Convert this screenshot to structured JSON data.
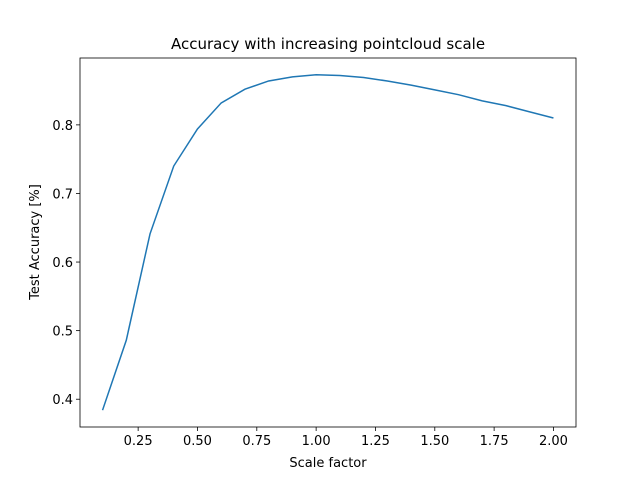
{
  "chart_data": {
    "type": "line",
    "title": "Accuracy with increasing pointcloud scale",
    "xlabel": "Scale factor",
    "ylabel": "Test Accuracy [%]",
    "x": [
      0.1,
      0.2,
      0.3,
      0.4,
      0.5,
      0.6,
      0.7,
      0.8,
      0.9,
      1.0,
      1.1,
      1.2,
      1.3,
      1.4,
      1.5,
      1.6,
      1.7,
      1.8,
      1.9,
      2.0
    ],
    "series": [
      {
        "name": "accuracy",
        "color": "#1f77b4",
        "values": [
          0.384,
          0.486,
          0.641,
          0.74,
          0.794,
          0.832,
          0.852,
          0.864,
          0.87,
          0.873,
          0.872,
          0.869,
          0.864,
          0.858,
          0.851,
          0.844,
          0.835,
          0.828,
          0.819,
          0.81
        ]
      }
    ],
    "xlim": [
      0.005,
      2.095
    ],
    "xticks": [
      0.25,
      {
        "value": 0.5,
        "label": "0.50"
      },
      0.75,
      {
        "value": 1.0,
        "label": "1.00"
      },
      1.25,
      {
        "value": 1.5,
        "label": "1.50"
      },
      1.75,
      {
        "value": 2.0,
        "label": "2.00"
      }
    ],
    "ylim": [
      0.3595,
      0.8975
    ],
    "yticks": [
      0.4,
      0.5,
      0.6,
      0.7,
      0.8
    ]
  }
}
